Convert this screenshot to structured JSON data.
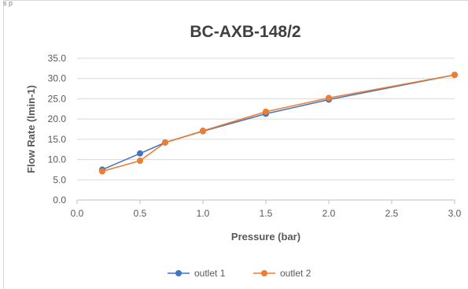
{
  "corner_label": "s p",
  "chart_data": {
    "type": "line",
    "title": "BC-AXB-148/2",
    "xlabel": "Pressure (bar)",
    "ylabel": "Flow Rate (lmin-1)",
    "xlim": [
      0,
      3
    ],
    "ylim": [
      0,
      35
    ],
    "x_ticks": [
      "0.0",
      "0.5",
      "1.0",
      "1.5",
      "2.0",
      "2.5",
      "3.0"
    ],
    "y_ticks": [
      "0.0",
      "5.0",
      "10.0",
      "15.0",
      "20.0",
      "25.0",
      "30.0",
      "35.0"
    ],
    "grid": "horizontal",
    "legend_position": "bottom",
    "series": [
      {
        "name": "outlet 1",
        "color": "#4472c4",
        "x": [
          0.2,
          0.5,
          0.7,
          1.0,
          1.5,
          2.0,
          3.0
        ],
        "y": [
          7.5,
          11.5,
          14.2,
          17.0,
          21.3,
          24.8,
          30.9
        ]
      },
      {
        "name": "outlet 2",
        "color": "#ed7d31",
        "x": [
          0.2,
          0.5,
          0.7,
          1.0,
          1.5,
          2.0,
          3.0
        ],
        "y": [
          7.1,
          9.7,
          14.2,
          17.1,
          21.8,
          25.2,
          30.9
        ]
      }
    ]
  }
}
